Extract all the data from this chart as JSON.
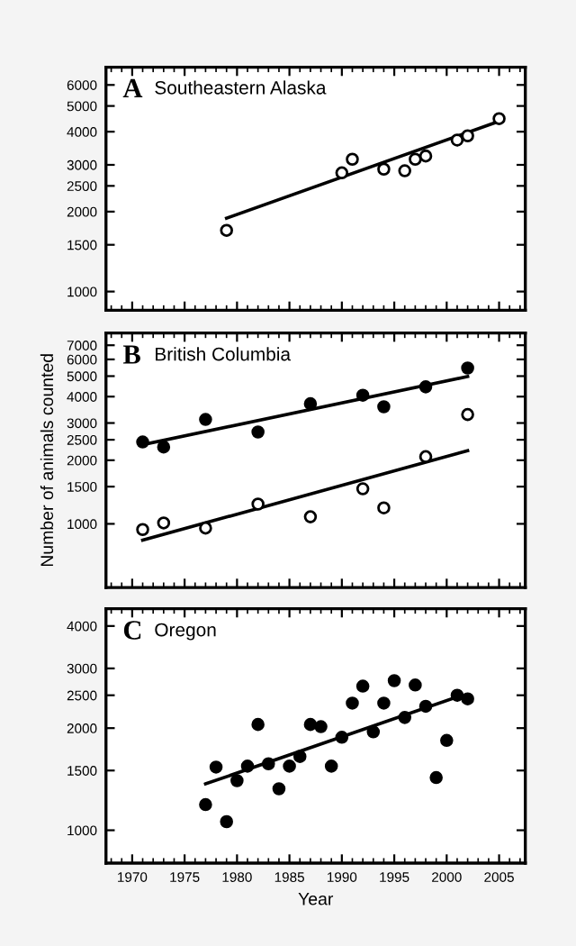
{
  "chart_data": [
    {
      "type": "scatter",
      "title": "Southeastern Alaska",
      "annotations": [
        "A"
      ],
      "log": "y",
      "xlim": [
        1967.5,
        2007.5
      ],
      "xticks": [
        1970,
        1975,
        1980,
        1985,
        1990,
        1995,
        2000,
        2005
      ],
      "ylim": [
        850,
        7000
      ],
      "yticks": [
        1000,
        1500,
        2000,
        2500,
        3000,
        4000,
        5000,
        6000
      ],
      "tick_labels": "y",
      "marker": "circle",
      "series": [
        {
          "color": "#ffffff",
          "x": [
            1979,
            1990,
            1991,
            1994,
            1996,
            1997,
            1998,
            2001,
            2002,
            2005
          ],
          "values": [
            1700,
            2800,
            3150,
            2890,
            2850,
            3150,
            3240,
            3720,
            3860,
            4480
          ]
        },
        {
          "type": "line",
          "marker": "none",
          "color": "#000000",
          "x": [
            1979,
            2005
          ],
          "values": [
            1890,
            4380
          ]
        }
      ]
    },
    {
      "type": "scatter",
      "title": "British Columbia",
      "annotations": [
        "B"
      ],
      "ylabel": "Number of animals counted",
      "log": "y",
      "xlim": [
        1967.5,
        2007.5
      ],
      "xticks": [
        1970,
        1975,
        1980,
        1985,
        1990,
        1995,
        2000,
        2005
      ],
      "ylim": [
        500,
        8000
      ],
      "yticks": [
        1000,
        1500,
        2000,
        2500,
        3000,
        4000,
        5000,
        6000,
        7000
      ],
      "tick_labels": "y",
      "marker": "circle",
      "series": [
        {
          "color": "#000000",
          "x": [
            1971,
            1973,
            1977,
            1982,
            1987,
            1992,
            1994,
            1998,
            2002
          ],
          "values": [
            2440,
            2310,
            3120,
            2720,
            3700,
            4060,
            3580,
            4450,
            5460
          ]
        },
        {
          "color": "#ffffff",
          "x": [
            1971,
            1973,
            1977,
            1982,
            1987,
            1992,
            1994,
            1998,
            2002
          ],
          "values": [
            940,
            1010,
            955,
            1240,
            1080,
            1465,
            1190,
            2080,
            3290
          ]
        },
        {
          "type": "line",
          "marker": "none",
          "color": "#000000",
          "x": [
            1971,
            2002
          ],
          "values": [
            2370,
            4980
          ]
        },
        {
          "type": "line",
          "marker": "none",
          "color": "#000000",
          "x": [
            1971,
            2002
          ],
          "values": [
            837,
            2220
          ]
        }
      ]
    },
    {
      "type": "scatter",
      "title": "Oregon",
      "annotations": [
        "C"
      ],
      "xlabel": "Year",
      "log": "y",
      "xlim": [
        1967.5,
        2007.5
      ],
      "xticks": [
        1970,
        1975,
        1980,
        1985,
        1990,
        1995,
        2000,
        2005
      ],
      "ylim": [
        800,
        4500
      ],
      "yticks": [
        1000,
        1500,
        2000,
        2500,
        3000,
        4000
      ],
      "marker": "circle",
      "series": [
        {
          "color": "#000000",
          "x": [
            1977,
            1978,
            1979,
            1980,
            1981,
            1982,
            1983,
            1984,
            1985,
            1986,
            1987,
            1988,
            1989,
            1990,
            1991,
            1992,
            1993,
            1994,
            1995,
            1996,
            1997,
            1998,
            1999,
            2000,
            2001,
            2002
          ],
          "values": [
            1190,
            1535,
            1060,
            1400,
            1545,
            2050,
            1570,
            1325,
            1545,
            1650,
            2050,
            2020,
            1545,
            1880,
            2370,
            2660,
            1950,
            2370,
            2760,
            2150,
            2680,
            2320,
            1430,
            1840,
            2500,
            2440
          ]
        },
        {
          "type": "line",
          "marker": "none",
          "color": "#000000",
          "x": [
            1977,
            2001
          ],
          "values": [
            1370,
            2470
          ]
        }
      ]
    }
  ]
}
